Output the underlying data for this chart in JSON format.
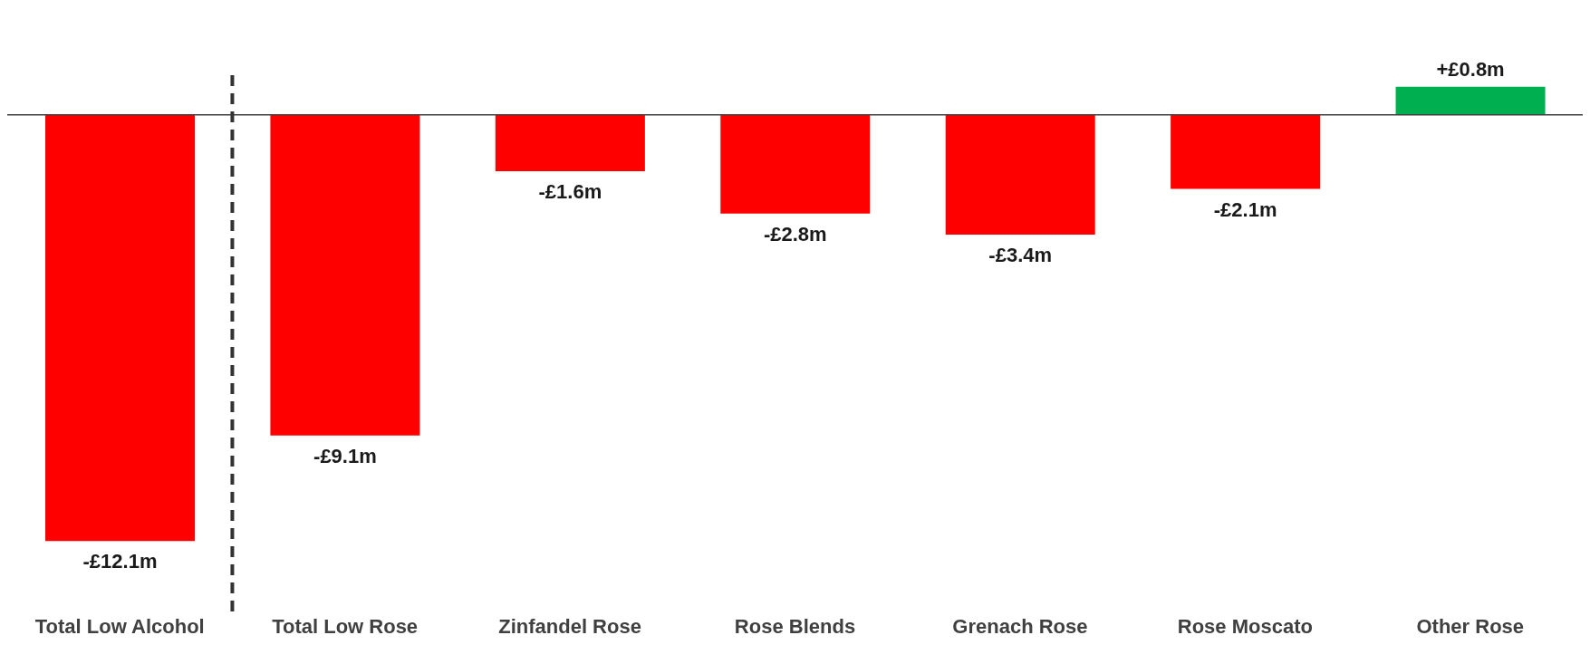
{
  "chart_data": {
    "type": "bar",
    "categories": [
      "Total Low Alcohol",
      "Total Low Rose",
      "Zinfandel Rose",
      "Rose Blends",
      "Grenach Rose",
      "Rose Moscato",
      "Other Rose"
    ],
    "values": [
      -12.1,
      -9.1,
      -1.6,
      -2.8,
      -3.4,
      -2.1,
      0.8
    ],
    "colors": [
      "#ff0000",
      "#ff0000",
      "#ff0000",
      "#ff0000",
      "#ff0000",
      "#ff0000",
      "#00b050"
    ],
    "value_labels": [
      "-£12.1m",
      "-£9.1m",
      "-£1.6m",
      "-£2.8m",
      "-£3.4m",
      "-£2.1m",
      "+£0.8m"
    ],
    "ref_lines": [
      {
        "axis": "y",
        "value": 0,
        "color": "#404040",
        "line_style": "solid"
      }
    ],
    "grid": false,
    "legend": false
  }
}
